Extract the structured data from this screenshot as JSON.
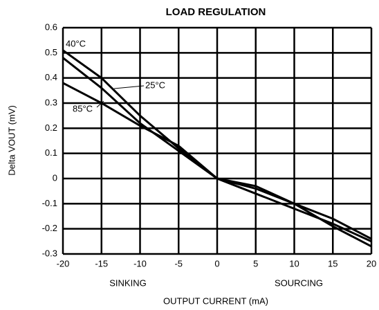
{
  "chart_data": {
    "type": "line",
    "title": "LOAD REGULATION",
    "x_label": "OUTPUT CURRENT (mA)",
    "y_label": "Delta VOUT (mV)",
    "annotations": [
      "SINKING",
      "SOURCING"
    ],
    "x": [
      -20,
      -15,
      -10,
      -5,
      0,
      5,
      10,
      15,
      20
    ],
    "series": [
      {
        "name": "40°C",
        "color": "#000000",
        "values": [
          0.51,
          0.4,
          0.25,
          0.12,
          0,
          -0.06,
          -0.12,
          -0.18,
          -0.25
        ]
      },
      {
        "name": "25°C",
        "color": "#000000",
        "values": [
          0.48,
          0.36,
          0.22,
          0.11,
          0,
          -0.04,
          -0.1,
          -0.16,
          -0.24
        ]
      },
      {
        "name": "85°C",
        "color": "#000000",
        "values": [
          0.38,
          0.3,
          0.21,
          0.13,
          0,
          -0.03,
          -0.1,
          -0.19,
          -0.27
        ]
      }
    ],
    "xlim": [
      -20,
      20
    ],
    "ylim": [
      -0.3,
      0.6
    ],
    "xticks": [
      -20,
      -15,
      -10,
      -5,
      0,
      5,
      10,
      15,
      20
    ],
    "yticks": [
      -0.3,
      -0.2,
      -0.1,
      0,
      0.1,
      0.2,
      0.3,
      0.4,
      0.5,
      0.6
    ],
    "grid": true
  }
}
